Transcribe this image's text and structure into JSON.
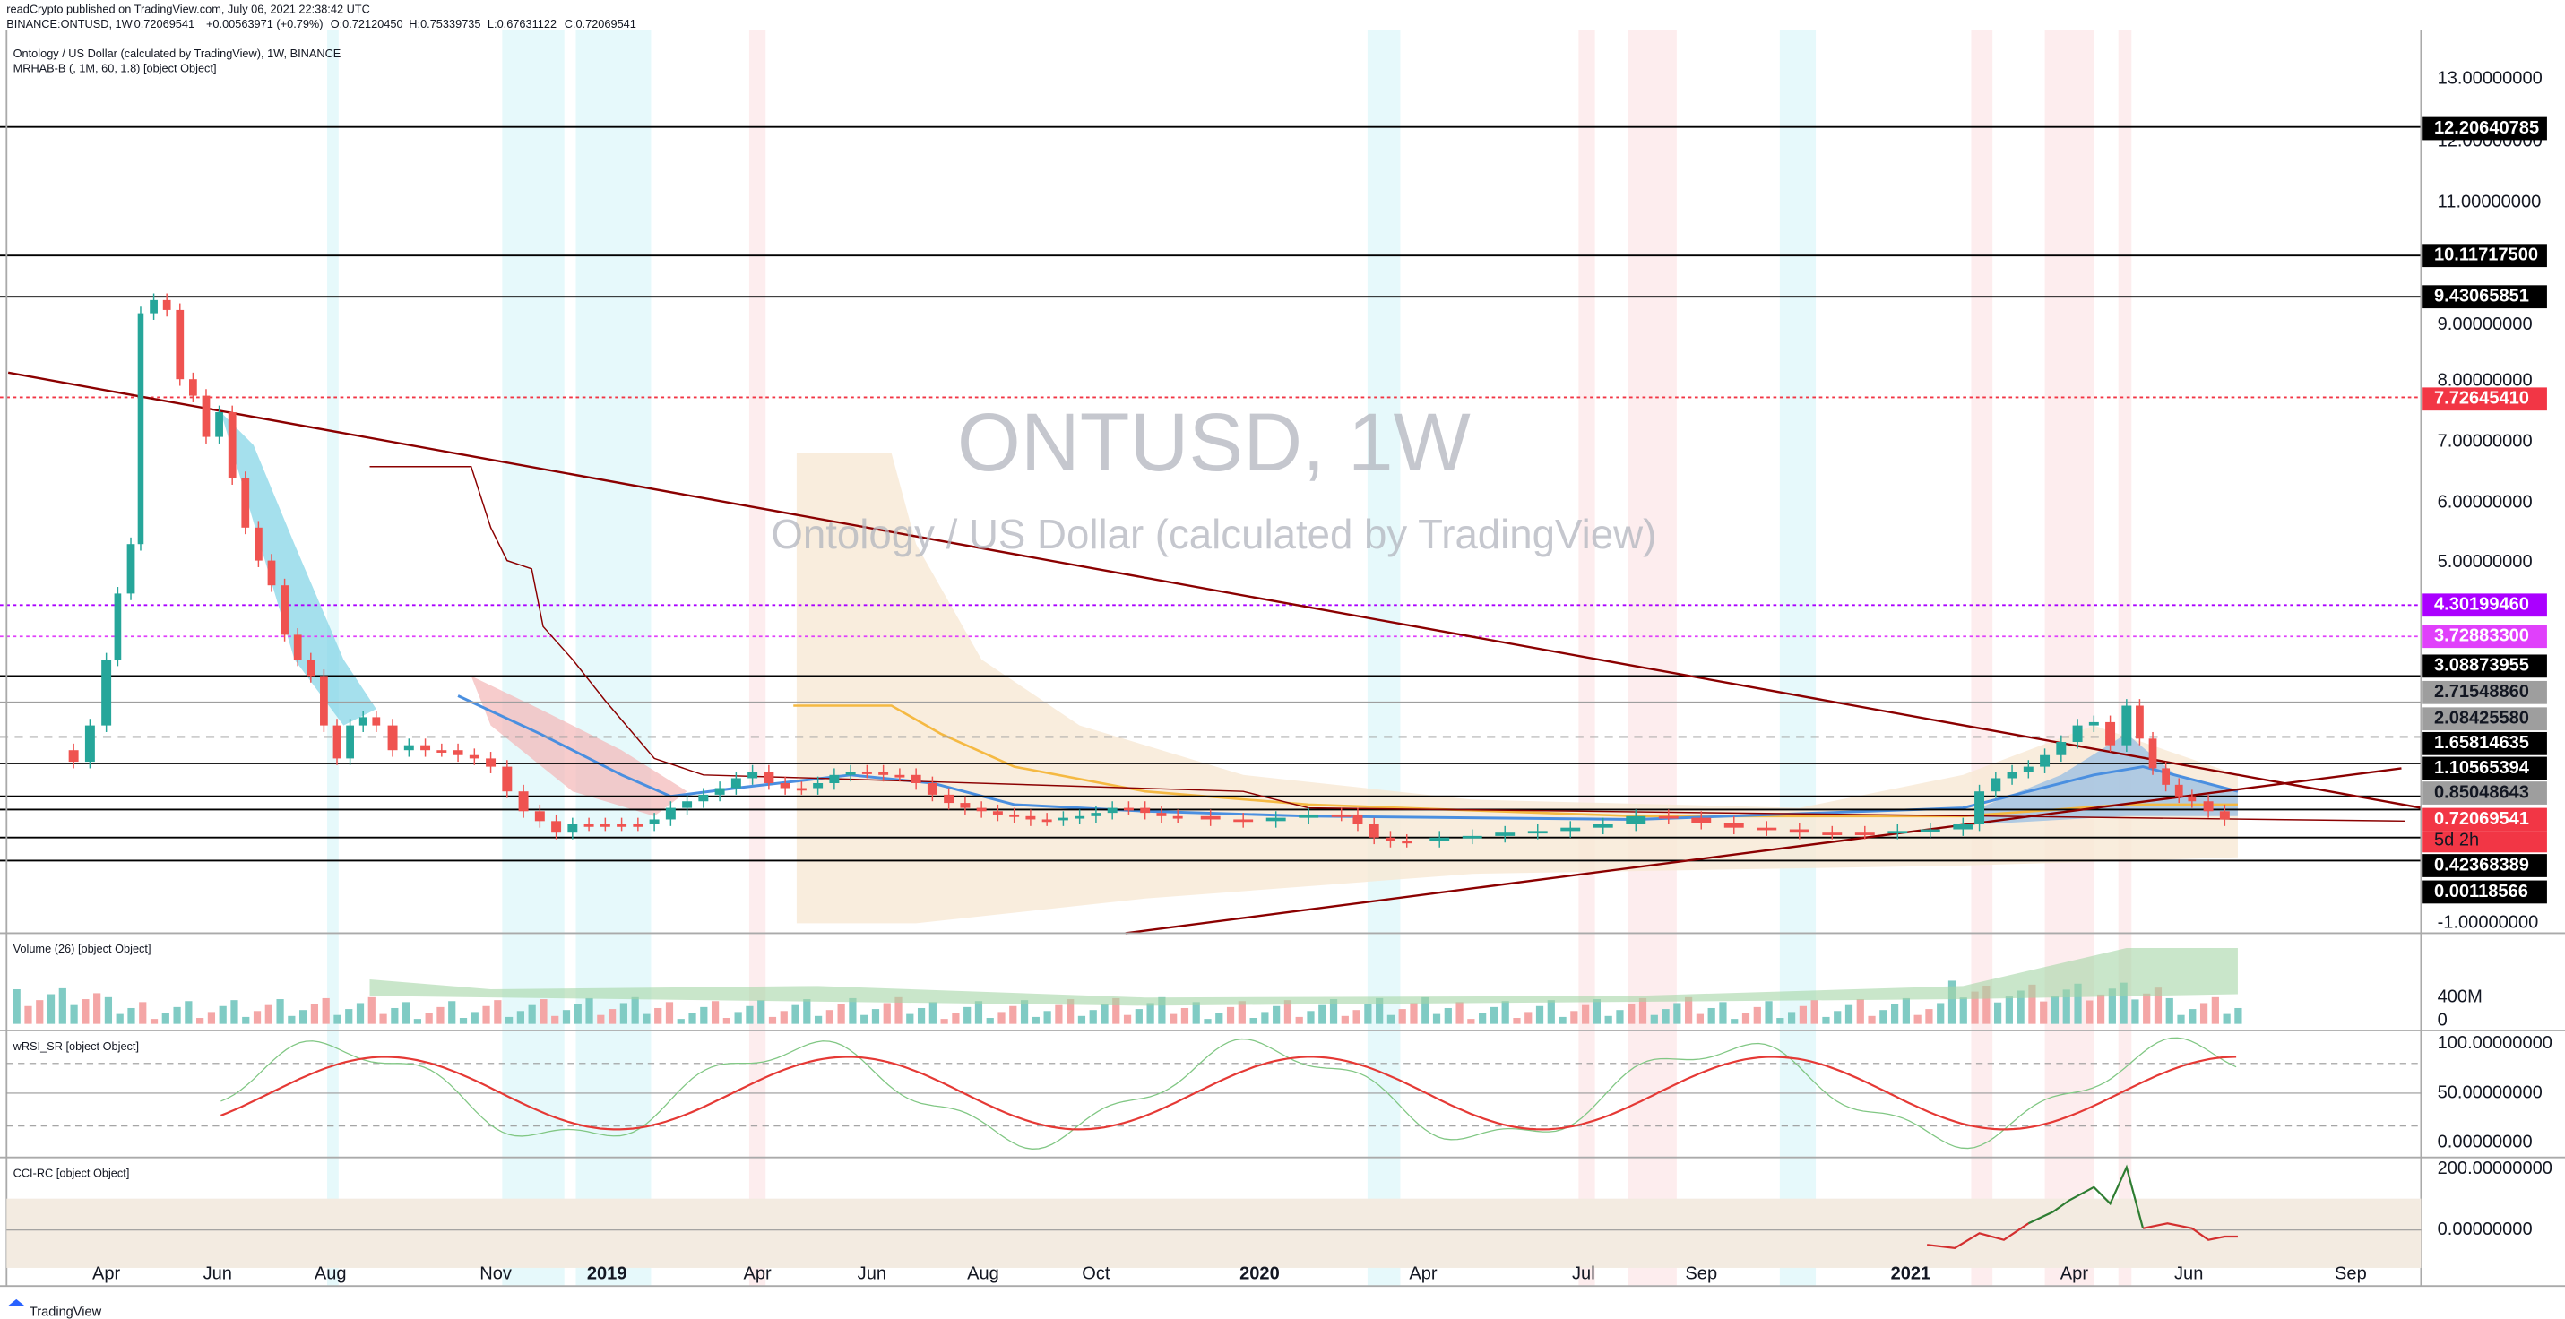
{
  "header": {
    "publisher": "readCrypto published on TradingView.com, July 06, 2021 22:38:42 UTC",
    "symbol": "BINANCE:ONTUSD, 1W",
    "last": "0.72069541",
    "change": "+0.00563971 (+0.79%)",
    "open": "O:0.72120450",
    "high": "H:0.75339735",
    "low": "L:0.67631122",
    "close": "C:0.72069541"
  },
  "legend": [
    "Ontology / US Dollar (calculated by TradingView), 1W, BINANCE",
    "MRHAB-B (, 1M, 60, 1.8) [object Object]"
  ],
  "watermark": {
    "symbol": "ONTUSD, 1W",
    "description": "Ontology / US Dollar (calculated by TradingView)"
  },
  "price_axis": [
    "13.00000000",
    "12.00000000",
    "11.00000000",
    "9.00000000",
    "8.00000000",
    "7.00000000",
    "6.00000000",
    "5.00000000",
    "-1.00000000"
  ],
  "price_marks": [
    "12.20640785",
    "10.11717500",
    "9.43065851",
    "7.72645410",
    "4.30199460",
    "3.72883300",
    "3.08873955",
    "2.71548860",
    "2.08425580",
    "1.65814635",
    "1.10565394",
    "0.85048643",
    "0.72069541",
    "0.42368389",
    "0.00118566"
  ],
  "countdown": "5d 2h",
  "time_axis": [
    "Apr",
    "Jun",
    "Aug",
    "Nov",
    "2019",
    "Apr",
    "Jun",
    "Aug",
    "Oct",
    "2020",
    "Apr",
    "Jul",
    "Sep",
    "2021",
    "Apr",
    "Jun",
    "Sep"
  ],
  "panes": [
    {
      "title": "Volume (26) [object Object]",
      "axis": [
        "400M",
        "0"
      ]
    },
    {
      "title": "wRSI_SR [object Object]",
      "axis": [
        "100.00000000",
        "50.00000000",
        "0.00000000"
      ]
    },
    {
      "title": "CCI-RC [object Object]",
      "axis": [
        "200.00000000",
        "0.00000000"
      ]
    }
  ],
  "footer": "TradingView"
}
